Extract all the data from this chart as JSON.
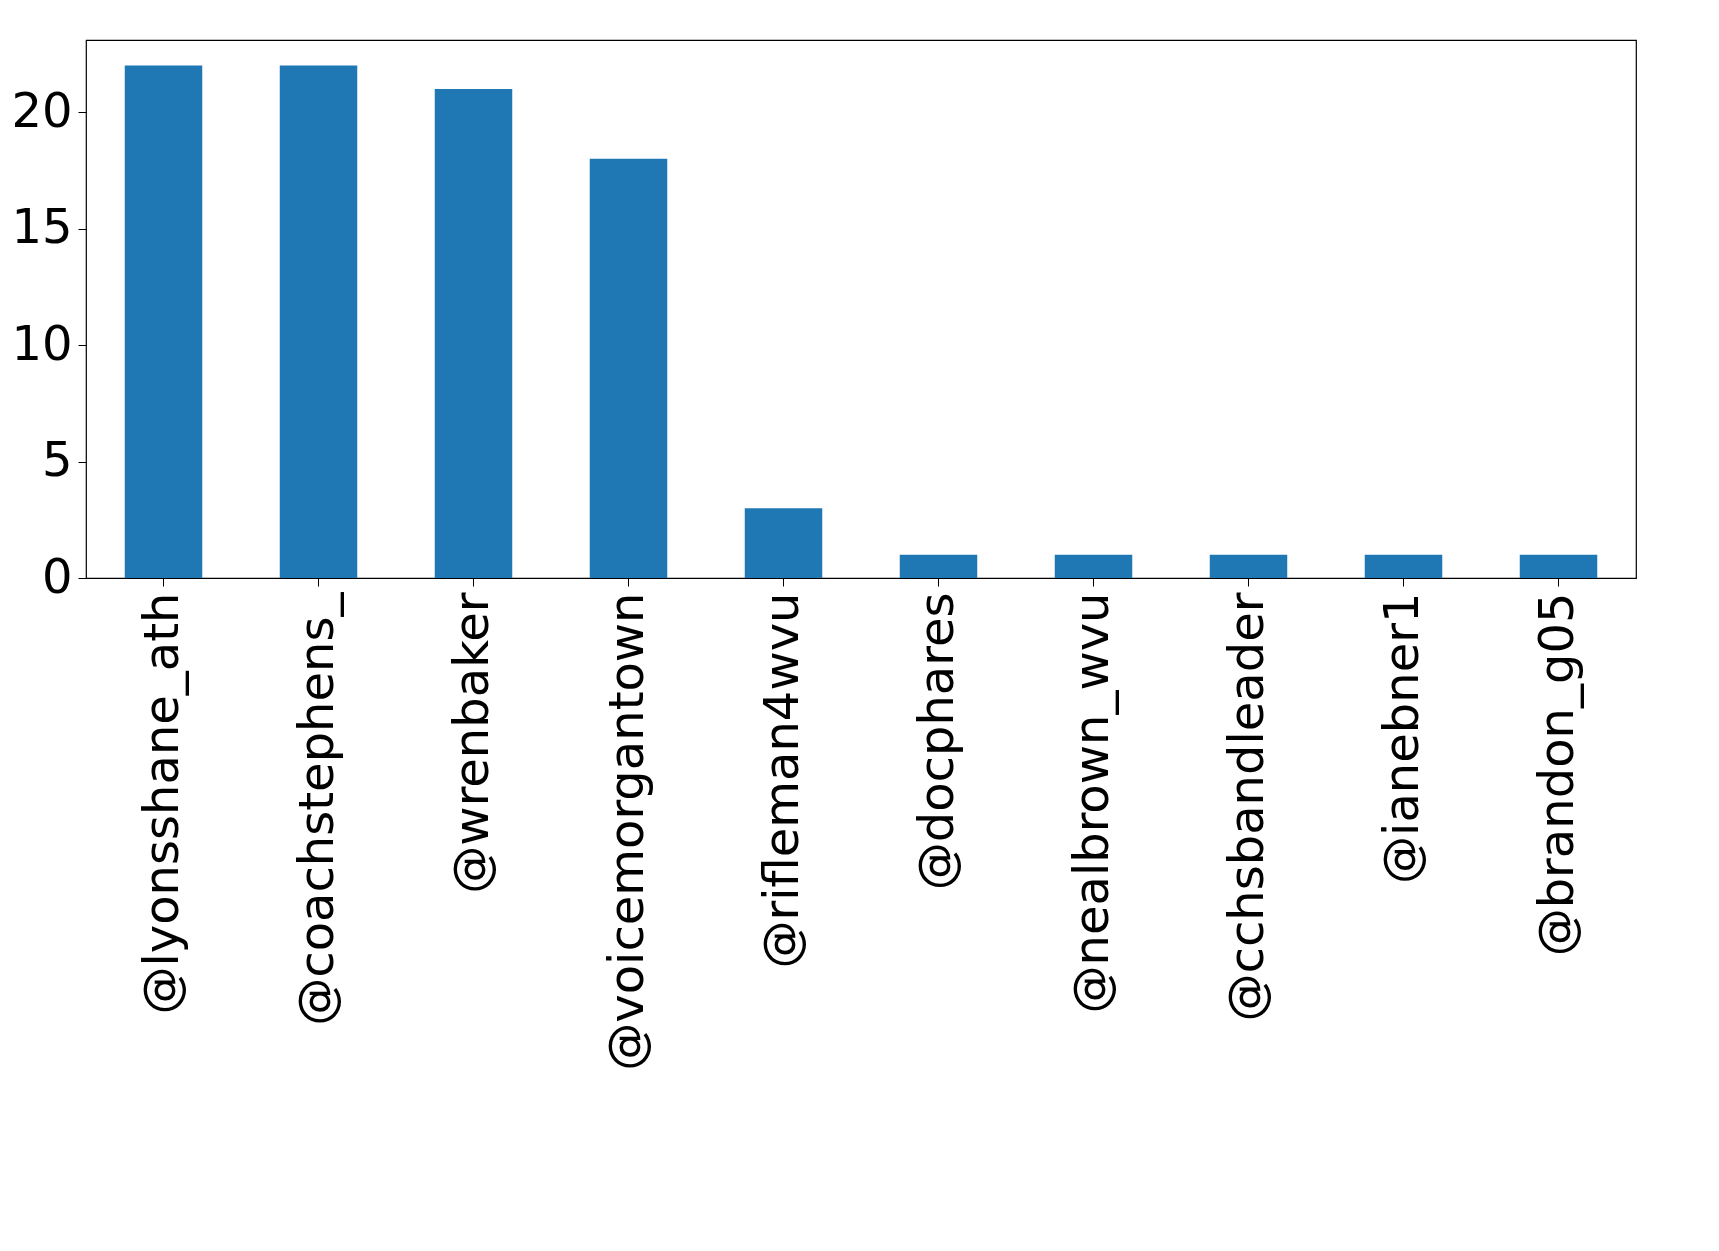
{
  "chart_data": {
    "type": "bar",
    "categories": [
      "@lyonsshane_ath",
      "@coachstephens_",
      "@wrenbaker",
      "@voicemorgantown",
      "@rifleman4wvu",
      "@docphares",
      "@nealbrown_wvu",
      "@cchsbandleader",
      "@ianebner1",
      "@brandon_g05"
    ],
    "values": [
      22,
      22,
      21,
      18,
      3,
      1,
      1,
      1,
      1,
      1
    ],
    "color": "#1f77b4",
    "ylim": [
      0,
      23.1
    ],
    "yticks": [
      0,
      5,
      10,
      15,
      20
    ],
    "grid": false
  }
}
